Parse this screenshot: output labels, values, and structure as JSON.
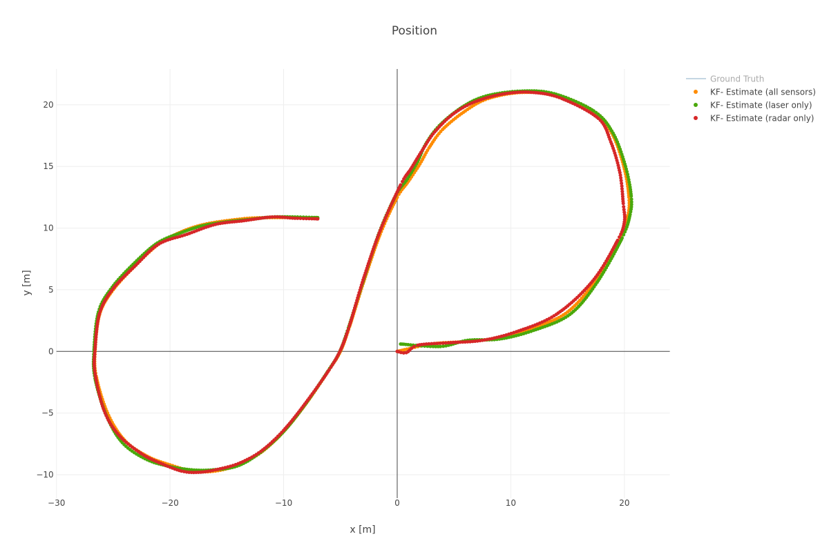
{
  "chart_data": {
    "type": "scatter",
    "title": "Position",
    "xlabel": "x [m]",
    "ylabel": "y [m]",
    "xlim": [
      -30,
      24
    ],
    "ylim": [
      -11.9,
      22.9
    ],
    "x_ticks": [
      -30,
      -20,
      -10,
      0,
      10,
      20
    ],
    "y_ticks": [
      -10,
      -5,
      0,
      5,
      10,
      15,
      20
    ],
    "x_tick_labels": [
      "−30",
      "−20",
      "−10",
      "0",
      "10",
      "20"
    ],
    "y_tick_labels": [
      "−10",
      "−5",
      "0",
      "5",
      "10",
      "15",
      "20"
    ],
    "grid": true,
    "legend_position": "top-right",
    "colors": {
      "ground_truth": "#9ebcd2",
      "all_sensors": "#ff8c00",
      "laser_only": "#4aa80b",
      "radar_only": "#d62728",
      "grid": "#eeeeee",
      "zeroline": "#444444"
    },
    "series": [
      {
        "name": "Ground Truth",
        "mode": "line",
        "visible": false,
        "x": [
          0,
          3,
          6,
          9,
          12,
          15,
          17.5,
          19.5,
          20.3,
          20.4,
          20.0,
          19.0,
          17.5,
          14.0,
          11.0,
          8.0,
          6.0,
          4.0,
          2.8,
          2.0,
          1.0,
          0,
          -1.5,
          -3.0,
          -4.2,
          -5.0,
          -6.0,
          -8.0,
          -10.0,
          -12.0,
          -14.0,
          -16.0,
          -18.0,
          -20.0,
          -22.0,
          -24.0,
          -25.5,
          -26.5,
          -26.6,
          -26.2,
          -25.0,
          -23.0,
          -21.0,
          -19.0,
          -17.0,
          -15.0,
          -13.0,
          -11.0,
          -9.0,
          -7.0
        ],
        "y": [
          0,
          0.6,
          0.8,
          1.1,
          1.9,
          3.2,
          5.8,
          9.0,
          11.0,
          12.5,
          14.8,
          17.5,
          19.2,
          20.7,
          21.0,
          20.5,
          19.5,
          18.0,
          16.5,
          15.2,
          13.8,
          12.5,
          9.5,
          5.5,
          2.0,
          0,
          -1.5,
          -4.2,
          -6.5,
          -8.2,
          -9.2,
          -9.7,
          -9.7,
          -9.2,
          -8.5,
          -7.2,
          -5.0,
          -2.0,
          0,
          3.0,
          5.0,
          7.0,
          8.7,
          9.7,
          10.3,
          10.6,
          10.8,
          10.85,
          10.85,
          10.8
        ]
      },
      {
        "name": "KF- Estimate (all sensors)",
        "mode": "markers",
        "x": [
          0,
          3,
          6,
          9,
          12,
          15,
          17.5,
          19.5,
          20.3,
          20.4,
          20.0,
          19.0,
          17.5,
          14.0,
          11.0,
          8.0,
          6.0,
          4.0,
          2.8,
          2.0,
          1.0,
          0,
          -1.5,
          -3.0,
          -4.2,
          -5.0,
          -6.0,
          -8.0,
          -10.0,
          -12.0,
          -14.0,
          -16.0,
          -18.0,
          -20.0,
          -22.0,
          -24.0,
          -25.5,
          -26.5,
          -26.6,
          -26.2,
          -25.0,
          -23.0,
          -21.0,
          -19.0,
          -17.0,
          -15.0,
          -13.0,
          -11.0,
          -9.0,
          -7.0
        ],
        "y": [
          0,
          0.6,
          0.8,
          1.1,
          1.9,
          3.2,
          5.8,
          9.0,
          11.0,
          12.5,
          14.8,
          17.5,
          19.2,
          20.7,
          21.0,
          20.5,
          19.5,
          18.0,
          16.5,
          15.2,
          13.8,
          12.5,
          9.5,
          5.5,
          2.0,
          0,
          -1.5,
          -4.2,
          -6.5,
          -8.2,
          -9.2,
          -9.7,
          -9.7,
          -9.2,
          -8.5,
          -7.2,
          -5.0,
          -2.0,
          0,
          3.0,
          5.0,
          7.0,
          8.7,
          9.7,
          10.3,
          10.6,
          10.8,
          10.85,
          10.85,
          10.8
        ]
      },
      {
        "name": "KF- Estimate (laser only)",
        "mode": "markers",
        "x": [
          0.3,
          3.8,
          6.2,
          9.0,
          12.0,
          15.2,
          17.6,
          19.8,
          20.5,
          20.6,
          20.1,
          19.0,
          17.3,
          13.8,
          10.8,
          7.8,
          5.7,
          3.7,
          2.5,
          1.8,
          0.9,
          -0.1,
          -1.6,
          -3.1,
          -4.3,
          -5.1,
          -6.1,
          -8.1,
          -10.1,
          -12.2,
          -14.1,
          -16.2,
          -18.1,
          -20.2,
          -22.2,
          -24.2,
          -25.6,
          -26.6,
          -26.7,
          -26.3,
          -25.1,
          -23.1,
          -21.1,
          -19.1,
          -17.1,
          -15.1,
          -13.0,
          -11.0,
          -9.0,
          -7.0
        ],
        "y": [
          0.6,
          0.4,
          0.9,
          1.0,
          1.7,
          3.0,
          5.6,
          9.2,
          11.1,
          12.6,
          15.0,
          17.7,
          19.5,
          20.9,
          21.1,
          20.7,
          19.8,
          18.3,
          16.8,
          15.4,
          14.0,
          12.7,
          9.6,
          5.4,
          1.9,
          -0.1,
          -1.6,
          -4.3,
          -6.6,
          -8.3,
          -9.3,
          -9.6,
          -9.6,
          -9.3,
          -8.7,
          -7.4,
          -5.2,
          -2.2,
          0,
          3.2,
          5.2,
          7.2,
          8.8,
          9.6,
          10.2,
          10.5,
          10.7,
          10.9,
          10.9,
          10.85
        ]
      },
      {
        "name": "KF- Estimate (radar only)",
        "mode": "markers",
        "x": [
          0,
          0.8,
          1.8,
          4.5,
          7.5,
          10.5,
          14.0,
          17.2,
          19.4,
          20.0,
          19.9,
          19.6,
          18.8,
          17.7,
          14.5,
          12.0,
          9.5,
          7.0,
          5.0,
          3.3,
          2.2,
          1.2,
          0.3,
          -1.5,
          -3.0,
          -4.2,
          -5.0,
          -6.0,
          -8.0,
          -10.0,
          -12.0,
          -14.0,
          -16.0,
          -17.5,
          -19.0,
          -21.0,
          -22.5,
          -24.5,
          -25.8,
          -26.6,
          -26.6,
          -26.2,
          -25.0,
          -23.0,
          -21.0,
          -18.5,
          -16.0,
          -13.5,
          -11.0,
          -9.0,
          -7.0
        ],
        "y": [
          0,
          -0.1,
          0.5,
          0.7,
          0.9,
          1.6,
          3.0,
          5.7,
          9.0,
          10.5,
          12.0,
          14.5,
          17.0,
          18.9,
          20.5,
          21.0,
          20.9,
          20.3,
          19.3,
          17.8,
          16.3,
          14.8,
          13.5,
          9.8,
          5.8,
          2.1,
          0.1,
          -1.5,
          -4.1,
          -6.4,
          -8.1,
          -9.1,
          -9.6,
          -9.8,
          -9.7,
          -9.0,
          -8.3,
          -6.8,
          -4.8,
          -1.8,
          0.2,
          3.1,
          5.1,
          7.0,
          8.7,
          9.5,
          10.3,
          10.6,
          10.9,
          10.8,
          10.75
        ]
      }
    ]
  }
}
